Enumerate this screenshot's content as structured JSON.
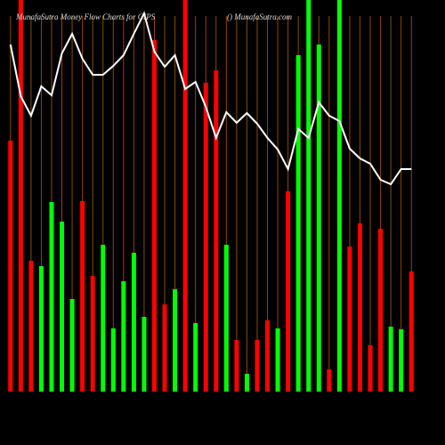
{
  "chart_data": {
    "type": "bar",
    "title": "MunafaSutra  Money Flow  Charts for GIPS",
    "subtitle": "() MunafaSutra.com",
    "categories": [
      null,
      null,
      null,
      null,
      null,
      null,
      null,
      null,
      null,
      null,
      null,
      null,
      null,
      null,
      null,
      null,
      null,
      null,
      null,
      null,
      null,
      null,
      null,
      null,
      null,
      null,
      null,
      null,
      null,
      null,
      null,
      null,
      null,
      null,
      null,
      null,
      null,
      null,
      null,
      null
    ],
    "values": [
      282,
      440,
      147,
      141,
      213,
      191,
      104,
      214,
      130,
      165,
      71,
      124,
      156,
      84,
      395,
      98,
      115,
      440,
      77,
      347,
      361,
      165,
      58,
      20,
      58,
      80,
      71,
      225,
      378,
      440,
      390,
      25,
      440,
      163,
      189,
      52,
      183,
      73,
      70,
      135
    ],
    "colors": [
      "#ff0000",
      "#ff0000",
      "#ff0000",
      "#00ff00",
      "#00ff00",
      "#00ff00",
      "#00ff00",
      "#ff0000",
      "#ff0000",
      "#00ff00",
      "#00ff00",
      "#00ff00",
      "#00ff00",
      "#00ff00",
      "#ff0000",
      "#ff0000",
      "#00ff00",
      "#ff0000",
      "#00ff00",
      "#ff0000",
      "#ff0000",
      "#00ff00",
      "#ff0000",
      "#00ff00",
      "#ff0000",
      "#ff0000",
      "#00ff00",
      "#ff0000",
      "#00ff00",
      "#00ff00",
      "#00ff00",
      "#ff0000",
      "#00ff00",
      "#ff0000",
      "#ff0000",
      "#ff0000",
      "#ff0000",
      "#00ff00",
      "#00ff00",
      "#ff0000"
    ],
    "ylim": [
      0,
      440
    ],
    "line": {
      "color": "#ffffff",
      "axis": "y2",
      "values": [
        390,
        332,
        310,
        343,
        333,
        380,
        402,
        374,
        356,
        356,
        366,
        378,
        402,
        425,
        382,
        365,
        378,
        340,
        348,
        320,
        285,
        314,
        302,
        313,
        301,
        285,
        272,
        250,
        295,
        285,
        325,
        310,
        304,
        273,
        262,
        256,
        238,
        233,
        250,
        250
      ]
    },
    "y2lim": [
      0,
      440
    ],
    "grid": true,
    "grid_color": "#8a4a00"
  }
}
